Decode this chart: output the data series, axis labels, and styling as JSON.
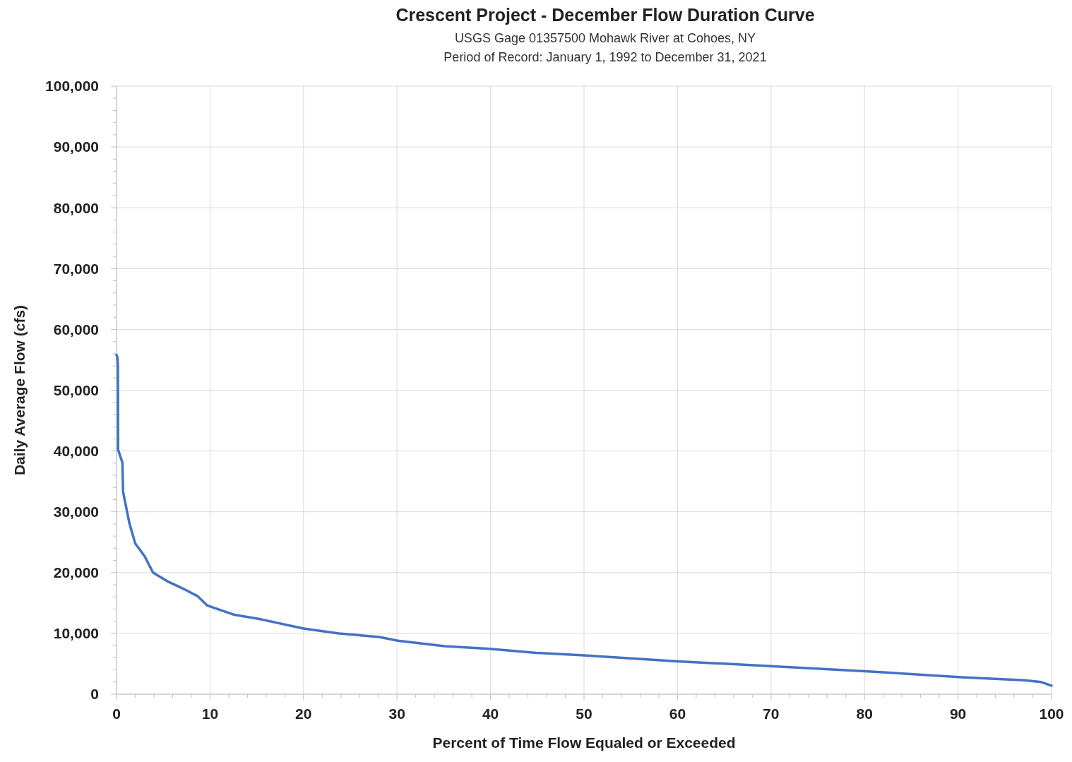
{
  "chart_data": {
    "type": "line",
    "title": "Crescent Project - December Flow Duration Curve",
    "subtitle": "USGS Gage 01357500 Mohawk River at Cohoes, NY\nPeriod of Record: January 1, 1992 to December 31, 2021",
    "xlabel": "Percent of Time Flow Equaled or Exceeded",
    "ylabel": "Daily Average Flow (cfs)",
    "x": [
      0,
      0.08,
      0.15,
      0.17,
      0.63,
      0.7,
      1.38,
      2.0,
      3.0,
      3.9,
      5.4,
      7.2,
      8.7,
      9.7,
      12.5,
      15.5,
      20,
      23.8,
      28.1,
      30.1,
      35.1,
      39.9,
      44.9,
      50,
      60,
      70.3,
      80.4,
      90.4,
      97.1,
      98.9,
      100
    ],
    "series": [
      {
        "color": "#4472c4",
        "values": [
          55800,
          55500,
          54100,
          40200,
          38100,
          33300,
          28100,
          24800,
          22700,
          20000,
          18600,
          17300,
          16100,
          14600,
          13100,
          12300,
          10800,
          10000,
          9400,
          8800,
          7900,
          7450,
          6800,
          6400,
          5400,
          4600,
          3750,
          2800,
          2300,
          2000,
          1400
        ]
      }
    ],
    "xlim": [
      0,
      100
    ],
    "ylim": [
      0,
      100000
    ],
    "xticks": [
      0,
      {
        "value": 2,
        "label": null
      },
      {
        "value": 4,
        "label": null
      },
      {
        "value": 6,
        "label": null
      },
      {
        "value": 8,
        "label": null
      },
      10,
      {
        "value": 12,
        "label": null
      },
      {
        "value": 14,
        "label": null
      },
      {
        "value": 16,
        "label": null
      },
      {
        "value": 18,
        "label": null
      },
      20,
      {
        "value": 22,
        "label": null
      },
      {
        "value": 24,
        "label": null
      },
      {
        "value": 26,
        "label": null
      },
      {
        "value": 28,
        "label": null
      },
      30,
      {
        "value": 32,
        "label": null
      },
      {
        "value": 34,
        "label": null
      },
      {
        "value": 36,
        "label": null
      },
      {
        "value": 38,
        "label": null
      },
      40,
      {
        "value": 42,
        "label": null
      },
      {
        "value": 44,
        "label": null
      },
      {
        "value": 46,
        "label": null
      },
      {
        "value": 48,
        "label": null
      },
      50,
      {
        "value": 52,
        "label": null
      },
      {
        "value": 54,
        "label": null
      },
      {
        "value": 56,
        "label": null
      },
      {
        "value": 58,
        "label": null
      },
      60,
      {
        "value": 62,
        "label": null
      },
      {
        "value": 64,
        "label": null
      },
      {
        "value": 66,
        "label": null
      },
      {
        "value": 68,
        "label": null
      },
      70,
      {
        "value": 72,
        "label": null
      },
      {
        "value": 74,
        "label": null
      },
      {
        "value": 76,
        "label": null
      },
      {
        "value": 78,
        "label": null
      },
      80,
      {
        "value": 82,
        "label": null
      },
      {
        "value": 84,
        "label": null
      },
      {
        "value": 86,
        "label": null
      },
      {
        "value": 88,
        "label": null
      },
      90,
      {
        "value": 92,
        "label": null
      },
      {
        "value": 94,
        "label": null
      },
      {
        "value": 96,
        "label": null
      },
      {
        "value": 98,
        "label": null
      },
      100
    ],
    "yticks": [
      {
        "value": 0,
        "label": "0"
      },
      {
        "value": 2000,
        "label": null
      },
      {
        "value": 4000,
        "label": null
      },
      {
        "value": 6000,
        "label": null
      },
      {
        "value": 8000,
        "label": null
      },
      {
        "value": 10000,
        "label": "10,000"
      },
      {
        "value": 12000,
        "label": null
      },
      {
        "value": 14000,
        "label": null
      },
      {
        "value": 16000,
        "label": null
      },
      {
        "value": 18000,
        "label": null
      },
      {
        "value": 20000,
        "label": "20,000"
      },
      {
        "value": 22000,
        "label": null
      },
      {
        "value": 24000,
        "label": null
      },
      {
        "value": 26000,
        "label": null
      },
      {
        "value": 28000,
        "label": null
      },
      {
        "value": 30000,
        "label": "30,000"
      },
      {
        "value": 32000,
        "label": null
      },
      {
        "value": 34000,
        "label": null
      },
      {
        "value": 36000,
        "label": null
      },
      {
        "value": 38000,
        "label": null
      },
      {
        "value": 40000,
        "label": "40,000"
      },
      {
        "value": 42000,
        "label": null
      },
      {
        "value": 44000,
        "label": null
      },
      {
        "value": 46000,
        "label": null
      },
      {
        "value": 48000,
        "label": null
      },
      {
        "value": 50000,
        "label": "50,000"
      },
      {
        "value": 52000,
        "label": null
      },
      {
        "value": 54000,
        "label": null
      },
      {
        "value": 56000,
        "label": null
      },
      {
        "value": 58000,
        "label": null
      },
      {
        "value": 60000,
        "label": "60,000"
      },
      {
        "value": 62000,
        "label": null
      },
      {
        "value": 64000,
        "label": null
      },
      {
        "value": 66000,
        "label": null
      },
      {
        "value": 68000,
        "label": null
      },
      {
        "value": 70000,
        "label": "70,000"
      },
      {
        "value": 72000,
        "label": null
      },
      {
        "value": 74000,
        "label": null
      },
      {
        "value": 76000,
        "label": null
      },
      {
        "value": 78000,
        "label": null
      },
      {
        "value": 80000,
        "label": "80,000"
      },
      {
        "value": 82000,
        "label": null
      },
      {
        "value": 84000,
        "label": null
      },
      {
        "value": 86000,
        "label": null
      },
      {
        "value": 88000,
        "label": null
      },
      {
        "value": 90000,
        "label": "90,000"
      },
      {
        "value": 92000,
        "label": null
      },
      {
        "value": 94000,
        "label": null
      },
      {
        "value": 96000,
        "label": null
      },
      {
        "value": 98000,
        "label": null
      },
      {
        "value": 100000,
        "label": "100,000"
      }
    ],
    "grid": true,
    "marker": "none",
    "line_style": "solid"
  }
}
